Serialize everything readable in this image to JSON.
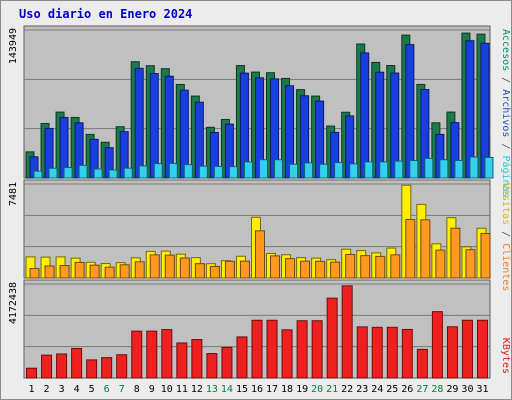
{
  "chart_data": {
    "type": "bar",
    "title": "Uso diario en Enero 2024",
    "categories": [
      "1",
      "2",
      "3",
      "4",
      "5",
      "6",
      "7",
      "8",
      "9",
      "10",
      "11",
      "12",
      "13",
      "14",
      "15",
      "16",
      "17",
      "18",
      "19",
      "20",
      "21",
      "22",
      "23",
      "24",
      "25",
      "26",
      "27",
      "28",
      "29",
      "30",
      "31"
    ],
    "weekend_days": [
      "6",
      "7",
      "13",
      "14",
      "20",
      "21",
      "27",
      "28"
    ],
    "panels": [
      {
        "name": "traffic",
        "ymax_label": "143949",
        "ylim": [
          0,
          143949
        ],
        "legend": [
          {
            "label": "Accesos",
            "color": "#009070"
          },
          {
            "label": " / ",
            "color": "#505050"
          },
          {
            "label": "Archivos",
            "color": "#2050c8"
          },
          {
            "label": " / ",
            "color": "#505050"
          },
          {
            "label": "Páginas",
            "color": "#30c0d8"
          }
        ],
        "series": [
          {
            "name": "Accesos",
            "color": "#1a7a4a",
            "values": [
              25430,
              53020,
              64120,
              58900,
              42420,
              34750,
              49900,
              113100,
              109240,
              106330,
              90970,
              79710,
              49320,
              56960,
              109370,
              103000,
              102410,
              96880,
              85960,
              79700,
              50530,
              63950,
              130320,
              112430,
              109370,
              138980,
              91000,
              53710,
              64120,
              140970,
              139920
            ]
          },
          {
            "name": "Archivos",
            "color": "#1a3fe0",
            "values": [
              20600,
              48200,
              58900,
              53700,
              37600,
              29500,
              45100,
              106700,
              101600,
              99000,
              85400,
              73700,
              44400,
              52400,
              102000,
              97400,
              96400,
              89700,
              80000,
              74800,
              44400,
              60400,
              121700,
              102900,
              102100,
              129700,
              86100,
              42400,
              53900,
              133500,
              131000
            ]
          },
          {
            "name": "Páginas",
            "color": "#33d0f0",
            "values": [
              6660,
              9500,
              10160,
              12290,
              8720,
              7830,
              9600,
              11770,
              13970,
              14200,
              13000,
              11500,
              11200,
              11060,
              15700,
              17800,
              17800,
              13400,
              14700,
              13400,
              15000,
              13800,
              15700,
              15700,
              16400,
              17000,
              19000,
              17800,
              17000,
              20400,
              20000
            ]
          }
        ]
      },
      {
        "name": "visits",
        "ymax_label": "7481",
        "ylim": [
          0,
          7481
        ],
        "legend": [
          {
            "label": "Visitas",
            "color": "#d0c000"
          },
          {
            "label": " / ",
            "color": "#505050"
          },
          {
            "label": "Clientes",
            "color": "#f08020"
          }
        ],
        "series": [
          {
            "name": "Visitas",
            "color": "#ffee00",
            "values": [
              1680,
              1660,
              1680,
              1580,
              1250,
              1150,
              1220,
              1610,
              2120,
              2140,
              1900,
              1620,
              1140,
              1380,
              1730,
              4830,
              1950,
              1850,
              1620,
              1580,
              1460,
              2290,
              2180,
              2000,
              2380,
              7380,
              5860,
              2720,
              4800,
              2480,
              3960
            ]
          },
          {
            "name": "Clientes",
            "color": "#ff9a1e",
            "values": [
              750,
              960,
              990,
              1240,
              1020,
              860,
              1050,
              1290,
              1840,
              1820,
              1590,
              1140,
              920,
              1330,
              1340,
              3750,
              1760,
              1540,
              1340,
              1330,
              1260,
              1870,
              1780,
              1720,
              1840,
              4660,
              4630,
              2220,
              3960,
              2250,
              3540
            ]
          }
        ]
      },
      {
        "name": "kbytes",
        "ymax_label": "4172438",
        "ylim": [
          0,
          4172438
        ],
        "legend": [
          {
            "label": "KBytes",
            "color": "#d82020"
          }
        ],
        "series": [
          {
            "name": "KBytes",
            "color": "#f02020",
            "values": [
              434000,
              1015000,
              1066000,
              1310000,
              805000,
              904000,
              1033000,
              2079000,
              2079000,
              2150000,
              1556000,
              1706000,
              1085000,
              1356000,
              1824000,
              2564000,
              2564000,
              2138000,
              2542000,
              2542000,
              3545000,
              4090000,
              2270000,
              2250000,
              2250000,
              2156000,
              1270000,
              2945000,
              2275000,
              2564000,
              2564000
            ]
          }
        ]
      }
    ]
  }
}
